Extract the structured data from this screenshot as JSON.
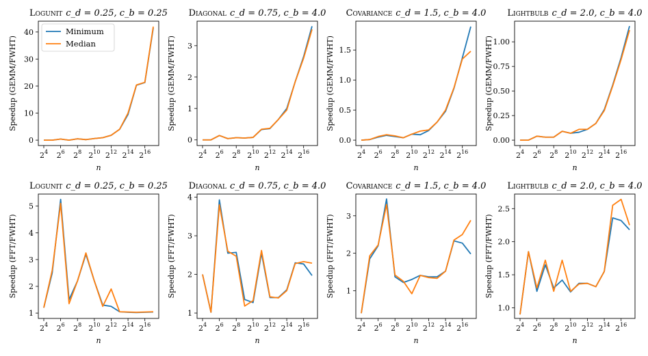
{
  "colors": {
    "minimum": "#1f77b4",
    "median": "#ff7f0e"
  },
  "legend": {
    "location": "upper-left of first panel",
    "minimum_label": "Minimum",
    "median_label": "Median"
  },
  "chart_data": [
    {
      "type": "line",
      "title_name": "Logunit",
      "title_params": "c_d = 0.25, c_b = 0.25",
      "xlabel": "n",
      "ylabel": "Speedup (GEMM/FWHT)",
      "x": [
        4,
        5,
        6,
        7,
        8,
        9,
        10,
        11,
        12,
        13,
        14,
        15,
        16,
        17
      ],
      "xticks": [
        4,
        6,
        8,
        10,
        12,
        14,
        16
      ],
      "ylim": [
        -2,
        44
      ],
      "yticks": [
        0,
        10,
        20,
        30,
        40
      ],
      "series": [
        {
          "name": "Minimum",
          "values": [
            0.0,
            0.0,
            0.4,
            0.0,
            0.5,
            0.2,
            0.6,
            0.9,
            1.8,
            4.0,
            9.5,
            20.3,
            21.3,
            41.5
          ]
        },
        {
          "name": "Median",
          "values": [
            0.0,
            0.0,
            0.4,
            0.0,
            0.5,
            0.2,
            0.6,
            0.9,
            1.8,
            4.0,
            10.0,
            20.4,
            21.4,
            42.0
          ]
        }
      ]
    },
    {
      "type": "line",
      "title_name": "Diagonal",
      "title_params": "c_d = 0.75, c_b = 4.0",
      "xlabel": "n",
      "ylabel": "Speedup (GEMM/FWHT)",
      "x": [
        4,
        5,
        6,
        7,
        8,
        9,
        10,
        11,
        12,
        13,
        14,
        15,
        16,
        17
      ],
      "xticks": [
        4,
        6,
        8,
        10,
        12,
        14,
        16
      ],
      "ylim": [
        -0.18,
        3.78
      ],
      "yticks": [
        0,
        1,
        2,
        3
      ],
      "series": [
        {
          "name": "Minimum",
          "values": [
            0.0,
            0.0,
            0.14,
            0.04,
            0.07,
            0.06,
            0.08,
            0.33,
            0.36,
            0.65,
            1.0,
            1.85,
            2.65,
            3.62
          ]
        },
        {
          "name": "Median",
          "values": [
            0.0,
            0.0,
            0.14,
            0.04,
            0.07,
            0.06,
            0.08,
            0.34,
            0.37,
            0.65,
            0.95,
            1.85,
            2.6,
            3.52
          ]
        }
      ]
    },
    {
      "type": "line",
      "title_name": "Covariance",
      "title_params": "c_d = 1.5, c_b = 4.0",
      "xlabel": "n",
      "ylabel": "Speedup (GEMM/FWHT)",
      "x": [
        4,
        5,
        6,
        7,
        8,
        9,
        10,
        11,
        12,
        13,
        14,
        15,
        16,
        17
      ],
      "xticks": [
        4,
        6,
        8,
        10,
        12,
        14,
        16
      ],
      "ylim": [
        -0.09,
        1.98
      ],
      "yticks": [
        0.0,
        0.5,
        1.0,
        1.5
      ],
      "series": [
        {
          "name": "Minimum",
          "values": [
            0.0,
            0.01,
            0.05,
            0.08,
            0.06,
            0.04,
            0.1,
            0.09,
            0.16,
            0.3,
            0.48,
            0.86,
            1.37,
            1.89
          ]
        },
        {
          "name": "Median",
          "values": [
            0.0,
            0.01,
            0.06,
            0.09,
            0.07,
            0.04,
            0.1,
            0.15,
            0.17,
            0.3,
            0.5,
            0.87,
            1.35,
            1.48
          ]
        }
      ]
    },
    {
      "type": "line",
      "title_name": "Lightbulb",
      "title_params": "c_d = 2.0, c_b = 4.0",
      "xlabel": "n",
      "ylabel": "Speedup (GEMM/FWHT)",
      "x": [
        4,
        5,
        6,
        7,
        8,
        9,
        10,
        11,
        12,
        13,
        14,
        15,
        16,
        17
      ],
      "xticks": [
        4,
        6,
        8,
        10,
        12,
        14,
        16
      ],
      "ylim": [
        -0.055,
        1.21
      ],
      "yticks": [
        0.0,
        0.25,
        0.5,
        0.75,
        1.0
      ],
      "series": [
        {
          "name": "Minimum",
          "values": [
            0.0,
            0.0,
            0.04,
            0.03,
            0.03,
            0.09,
            0.07,
            0.08,
            0.11,
            0.17,
            0.31,
            0.56,
            0.84,
            1.16
          ]
        },
        {
          "name": "Median",
          "values": [
            0.0,
            0.0,
            0.04,
            0.03,
            0.03,
            0.09,
            0.07,
            0.11,
            0.11,
            0.17,
            0.3,
            0.55,
            0.82,
            1.12
          ]
        }
      ]
    },
    {
      "type": "line",
      "title_name": "Logunit",
      "title_params": "c_d = 0.25, c_b = 0.25",
      "xlabel": "n",
      "ylabel": "Speedup (FFT/FWHT)",
      "x": [
        4,
        5,
        6,
        7,
        8,
        9,
        10,
        11,
        12,
        13,
        14,
        15,
        16,
        17
      ],
      "xticks": [
        4,
        6,
        8,
        10,
        12,
        14,
        16
      ],
      "ylim": [
        0.8,
        5.45
      ],
      "yticks": [
        1,
        2,
        3,
        4,
        5
      ],
      "series": [
        {
          "name": "Minimum",
          "values": [
            1.2,
            2.5,
            5.25,
            1.5,
            2.2,
            3.2,
            2.2,
            1.3,
            1.25,
            1.05,
            1.03,
            1.02,
            1.03,
            1.04
          ]
        },
        {
          "name": "Median",
          "values": [
            1.2,
            2.6,
            5.1,
            1.35,
            2.2,
            3.25,
            2.2,
            1.25,
            1.9,
            1.05,
            1.04,
            1.03,
            1.04,
            1.05
          ]
        }
      ]
    },
    {
      "type": "line",
      "title_name": "Diagonal",
      "title_params": "c_d = 0.75, c_b = 4.0",
      "xlabel": "n",
      "ylabel": "Speedup (FFT/FWHT)",
      "x": [
        4,
        5,
        6,
        7,
        8,
        9,
        10,
        11,
        12,
        13,
        14,
        15,
        16,
        17
      ],
      "xticks": [
        4,
        6,
        8,
        10,
        12,
        14,
        16
      ],
      "ylim": [
        0.86,
        4.08
      ],
      "yticks": [
        1,
        2,
        3,
        4
      ],
      "series": [
        {
          "name": "Minimum",
          "values": [
            2.0,
            1.02,
            3.93,
            2.55,
            2.57,
            1.35,
            1.27,
            2.55,
            1.4,
            1.4,
            1.6,
            2.3,
            2.27,
            1.97
          ]
        },
        {
          "name": "Median",
          "values": [
            2.0,
            1.02,
            3.8,
            2.6,
            2.47,
            1.18,
            1.32,
            2.62,
            1.42,
            1.39,
            1.58,
            2.28,
            2.33,
            2.29
          ]
        }
      ]
    },
    {
      "type": "line",
      "title_name": "Covariance",
      "title_params": "c_d = 1.5, c_b = 4.0",
      "xlabel": "n",
      "ylabel": "Speedup (FFT/FWHT)",
      "x": [
        4,
        5,
        6,
        7,
        8,
        9,
        10,
        11,
        12,
        13,
        14,
        15,
        16,
        17
      ],
      "xticks": [
        4,
        6,
        8,
        10,
        12,
        14,
        16
      ],
      "ylim": [
        0.26,
        3.58
      ],
      "yticks": [
        1,
        2,
        3
      ],
      "series": [
        {
          "name": "Minimum",
          "values": [
            0.4,
            1.85,
            2.2,
            3.45,
            1.37,
            1.22,
            1.3,
            1.41,
            1.37,
            1.37,
            1.52,
            2.33,
            2.27,
            1.98
          ]
        },
        {
          "name": "Median",
          "values": [
            0.4,
            1.93,
            2.22,
            3.3,
            1.42,
            1.25,
            0.92,
            1.41,
            1.35,
            1.33,
            1.52,
            2.35,
            2.5,
            2.88
          ]
        }
      ]
    },
    {
      "type": "line",
      "title_name": "Lightbulb",
      "title_params": "c_d = 2.0, c_b = 4.0",
      "xlabel": "n",
      "ylabel": "Speedup (FFT/FWHT)",
      "x": [
        4,
        5,
        6,
        7,
        8,
        9,
        10,
        11,
        12,
        13,
        14,
        15,
        16,
        17
      ],
      "xticks": [
        4,
        6,
        8,
        10,
        12,
        14,
        16
      ],
      "ylim": [
        0.84,
        2.72
      ],
      "yticks": [
        1.0,
        1.5,
        2.0,
        2.5
      ],
      "series": [
        {
          "name": "Minimum",
          "values": [
            0.9,
            1.85,
            1.25,
            1.65,
            1.3,
            1.42,
            1.24,
            1.37,
            1.37,
            1.32,
            1.55,
            2.36,
            2.32,
            2.18
          ]
        },
        {
          "name": "Median",
          "values": [
            0.9,
            1.85,
            1.3,
            1.72,
            1.25,
            1.72,
            1.25,
            1.36,
            1.37,
            1.32,
            1.55,
            2.55,
            2.64,
            2.25
          ]
        }
      ]
    }
  ]
}
